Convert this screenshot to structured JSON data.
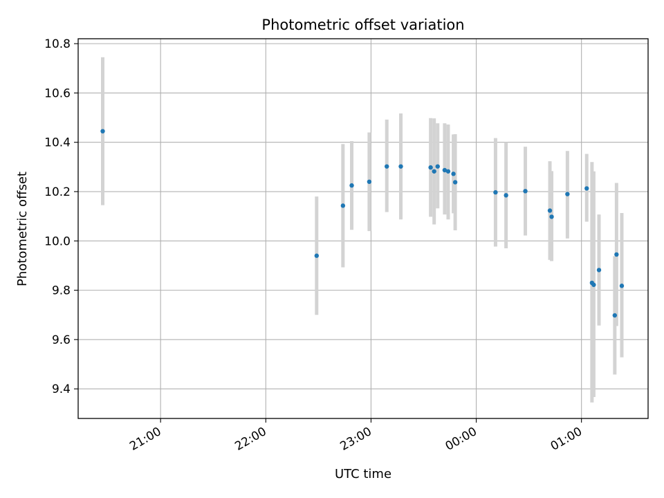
{
  "chart_data": {
    "type": "scatter",
    "title": "Photometric offset variation",
    "xlabel": "UTC time",
    "ylabel": "Photometric offset",
    "x_unit": "UTC time (HH:MM)",
    "xlim": [
      "20:13",
      "01:38"
    ],
    "ylim": [
      9.28,
      10.82
    ],
    "xticks": [
      {
        "time": "21:00",
        "label": "21:00"
      },
      {
        "time": "22:00",
        "label": "22:00"
      },
      {
        "time": "23:00",
        "label": "23:00"
      },
      {
        "time": "00:00",
        "label": "00:00"
      },
      {
        "time": "01:00",
        "label": "01:00"
      }
    ],
    "yticks": [
      9.4,
      9.6,
      9.8,
      10.0,
      10.2,
      10.4,
      10.6,
      10.8
    ],
    "grid": true,
    "marker_color": "#1f77b4",
    "errorbar_color": "#d3d3d3",
    "points": [
      {
        "t": "20:27",
        "y": 10.445,
        "ylo": 10.145,
        "yhi": 10.745
      },
      {
        "t": "22:29",
        "y": 9.94,
        "ylo": 9.7,
        "yhi": 10.18
      },
      {
        "t": "22:44",
        "y": 10.143,
        "ylo": 9.893,
        "yhi": 10.393
      },
      {
        "t": "22:49",
        "y": 10.225,
        "ylo": 10.045,
        "yhi": 10.405
      },
      {
        "t": "22:59",
        "y": 10.24,
        "ylo": 10.04,
        "yhi": 10.44
      },
      {
        "t": "23:09",
        "y": 10.302,
        "ylo": 10.117,
        "yhi": 10.492
      },
      {
        "t": "23:17",
        "y": 10.302,
        "ylo": 10.087,
        "yhi": 10.517
      },
      {
        "t": "23:34",
        "y": 10.298,
        "ylo": 10.098,
        "yhi": 10.498
      },
      {
        "t": "23:36",
        "y": 10.282,
        "ylo": 10.067,
        "yhi": 10.497
      },
      {
        "t": "23:38",
        "y": 10.302,
        "ylo": 10.132,
        "yhi": 10.477
      },
      {
        "t": "23:42",
        "y": 10.287,
        "ylo": 10.107,
        "yhi": 10.477
      },
      {
        "t": "23:44",
        "y": 10.282,
        "ylo": 10.087,
        "yhi": 10.472
      },
      {
        "t": "23:47",
        "y": 10.272,
        "ylo": 10.112,
        "yhi": 10.432
      },
      {
        "t": "23:48",
        "y": 10.238,
        "ylo": 10.043,
        "yhi": 10.433
      },
      {
        "t": "00:11",
        "y": 10.197,
        "ylo": 9.977,
        "yhi": 10.417
      },
      {
        "t": "00:17",
        "y": 10.185,
        "ylo": 9.97,
        "yhi": 10.4
      },
      {
        "t": "00:28",
        "y": 10.202,
        "ylo": 10.022,
        "yhi": 10.382
      },
      {
        "t": "00:42",
        "y": 10.123,
        "ylo": 9.923,
        "yhi": 10.323
      },
      {
        "t": "00:43",
        "y": 10.098,
        "ylo": 9.918,
        "yhi": 10.283
      },
      {
        "t": "00:52",
        "y": 10.19,
        "ylo": 10.01,
        "yhi": 10.365
      },
      {
        "t": "01:03",
        "y": 10.213,
        "ylo": 10.078,
        "yhi": 10.353
      },
      {
        "t": "01:06",
        "y": 9.83,
        "ylo": 9.345,
        "yhi": 10.32
      },
      {
        "t": "01:07",
        "y": 9.822,
        "ylo": 9.367,
        "yhi": 10.282
      },
      {
        "t": "01:10",
        "y": 9.882,
        "ylo": 9.657,
        "yhi": 10.107
      },
      {
        "t": "01:19",
        "y": 9.698,
        "ylo": 9.458,
        "yhi": 9.938
      },
      {
        "t": "01:20",
        "y": 9.945,
        "ylo": 9.655,
        "yhi": 10.235
      },
      {
        "t": "01:23",
        "y": 9.818,
        "ylo": 9.528,
        "yhi": 10.113
      }
    ]
  }
}
